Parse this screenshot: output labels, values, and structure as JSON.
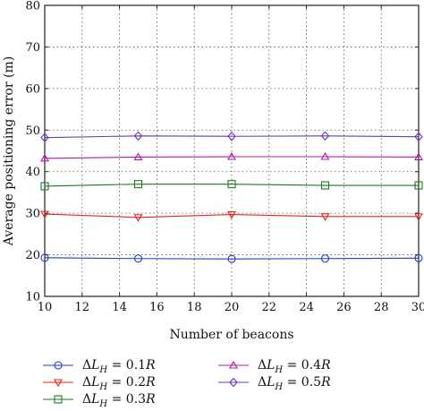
{
  "chart_data": {
    "type": "line",
    "title": "",
    "xlabel": "Number of beacons",
    "ylabel": "Average positioning error (m)",
    "xlim": [
      10,
      30
    ],
    "ylim": [
      10,
      80
    ],
    "xticks": [
      "10",
      "12",
      "14",
      "16",
      "18",
      "20",
      "22",
      "24",
      "26",
      "28",
      "30"
    ],
    "yticks": [
      "10",
      "20",
      "30",
      "40",
      "50",
      "60",
      "70",
      "80"
    ],
    "grid": true,
    "legend_position": "bottom",
    "x": [
      10,
      15,
      20,
      25,
      30
    ],
    "series": [
      {
        "name": "ΔL_H = 0.1R",
        "name_parts": [
          "Δ",
          "L",
          "H",
          " = 0.1",
          "R"
        ],
        "color": "#1f3fbf",
        "marker": "circle",
        "values": [
          19.3,
          19.1,
          19.0,
          19.1,
          19.2
        ]
      },
      {
        "name": "ΔL_H = 0.2R",
        "name_parts": [
          "Δ",
          "L",
          "H",
          " = 0.2",
          "R"
        ],
        "color": "#e8231c",
        "marker": "triangle-down",
        "values": [
          29.8,
          29.0,
          29.7,
          29.2,
          29.2
        ]
      },
      {
        "name": "ΔL_H = 0.3R",
        "name_parts": [
          "Δ",
          "L",
          "H",
          " = 0.3",
          "R"
        ],
        "color": "#1e7a1e",
        "marker": "square",
        "values": [
          36.5,
          37.0,
          37.0,
          36.7,
          36.7
        ]
      },
      {
        "name": "ΔL_H = 0.4R",
        "name_parts": [
          "Δ",
          "L",
          "H",
          " = 0.4",
          "R"
        ],
        "color": "#b01aa8",
        "marker": "triangle-up",
        "values": [
          43.2,
          43.5,
          43.6,
          43.6,
          43.5
        ]
      },
      {
        "name": "ΔL_H = 0.5R",
        "name_parts": [
          "Δ",
          "L",
          "H",
          " = 0.5",
          "R"
        ],
        "color": "#6a3ab0",
        "marker": "diamond",
        "values": [
          48.2,
          48.6,
          48.5,
          48.6,
          48.4
        ]
      }
    ]
  }
}
